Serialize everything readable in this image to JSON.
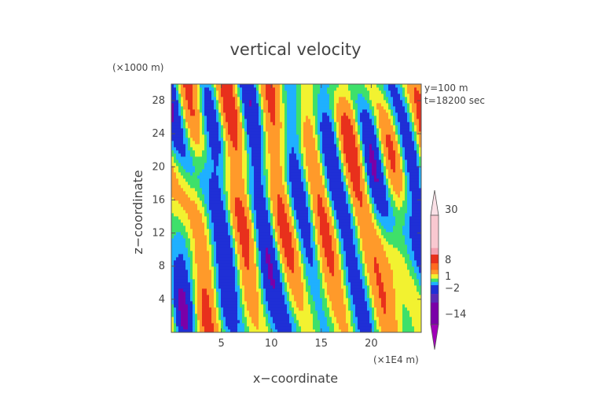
{
  "chart_data": {
    "type": "heatmap",
    "title": "vertical velocity",
    "xlabel": "x−coordinate",
    "ylabel": "z−coordinate",
    "x_unit_label": "(×1E4 m)",
    "y_unit_label": "(×1000 m)",
    "annotations": [
      "y=100  m",
      "t=18200 sec"
    ],
    "xlim": [
      0,
      25
    ],
    "ylim": [
      0,
      30
    ],
    "x_ticks": [
      "5",
      "10",
      "15",
      "20"
    ],
    "y_ticks": [
      "4",
      "8",
      "12",
      "16",
      "20",
      "24",
      "28"
    ],
    "colorbar": {
      "labels": [
        "30",
        "8",
        "1",
        "−2",
        "−14"
      ],
      "extend": "both",
      "levels": [
        -14,
        -2,
        1,
        8,
        30
      ]
    },
    "color_scale": {
      "strong_down": "#7a00a8",
      "down": "#1f2fd6",
      "weak_down": "#1fb0ff",
      "neutral": "#3ee06a",
      "weak_up": "#f2f230",
      "up": "#ff9a2a",
      "strong_up": "#e8301c",
      "very_strong_up": "#f4a0b0"
    }
  }
}
